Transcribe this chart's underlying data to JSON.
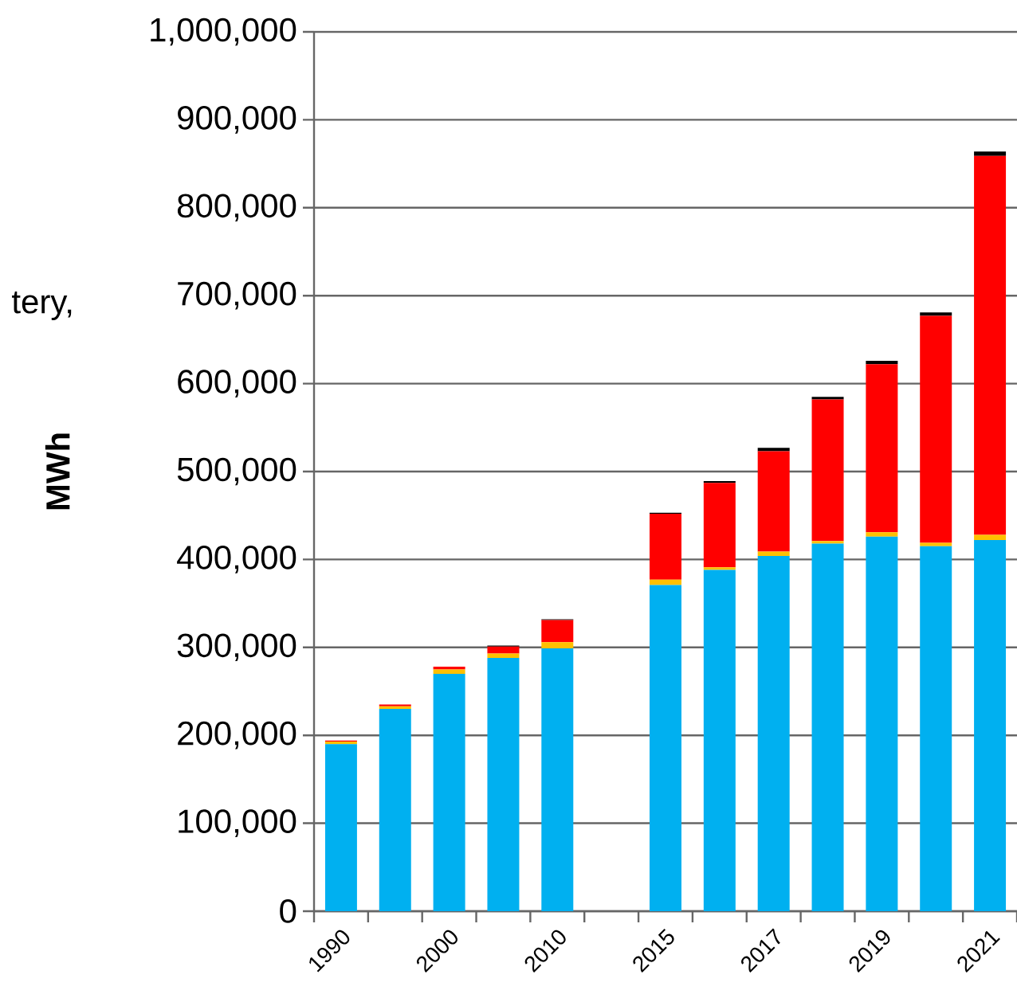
{
  "chart_data": {
    "type": "bar",
    "stacked": true,
    "ylabel": "MWh",
    "annotations": [
      "tery,"
    ],
    "categories": [
      "1990",
      null,
      "2000",
      null,
      "2010",
      null,
      "2015",
      null,
      "2017",
      null,
      "2019",
      null,
      "2021"
    ],
    "series": [
      {
        "color": "#00b0f0",
        "values": [
          190000,
          230000,
          270000,
          288000,
          299000,
          null,
          371000,
          388000,
          404000,
          418000,
          426000,
          415000,
          422000
        ]
      },
      {
        "color": "#ffc000",
        "values": [
          3000,
          3000,
          5000,
          5000,
          7000,
          null,
          6000,
          3000,
          5000,
          3000,
          5000,
          4000,
          6000
        ]
      },
      {
        "color": "#ff0000",
        "values": [
          1000,
          2000,
          3000,
          8000,
          25000,
          null,
          75000,
          96000,
          114000,
          161000,
          191000,
          258000,
          431000
        ]
      },
      {
        "color": "#000000",
        "values": [
          0,
          0,
          0,
          1000,
          1000,
          null,
          1000,
          2000,
          4000,
          3000,
          4000,
          4000,
          5000
        ]
      }
    ],
    "ylim": [
      0,
      1000000
    ],
    "yticks": [
      0,
      {
        "value": 100000,
        "label": "100,000"
      },
      {
        "value": 200000,
        "label": "200,000"
      },
      {
        "value": 300000,
        "label": "300,000"
      },
      {
        "value": 400000,
        "label": "400,000"
      },
      {
        "value": 500000,
        "label": "500,000"
      },
      {
        "value": 600000,
        "label": "600,000"
      },
      {
        "value": 700000,
        "label": "700,000"
      },
      {
        "value": 800000,
        "label": "800,000"
      },
      {
        "value": 900000,
        "label": "900,000"
      },
      {
        "value": 1000000,
        "label": "1,000,000"
      }
    ],
    "grid": "y"
  }
}
